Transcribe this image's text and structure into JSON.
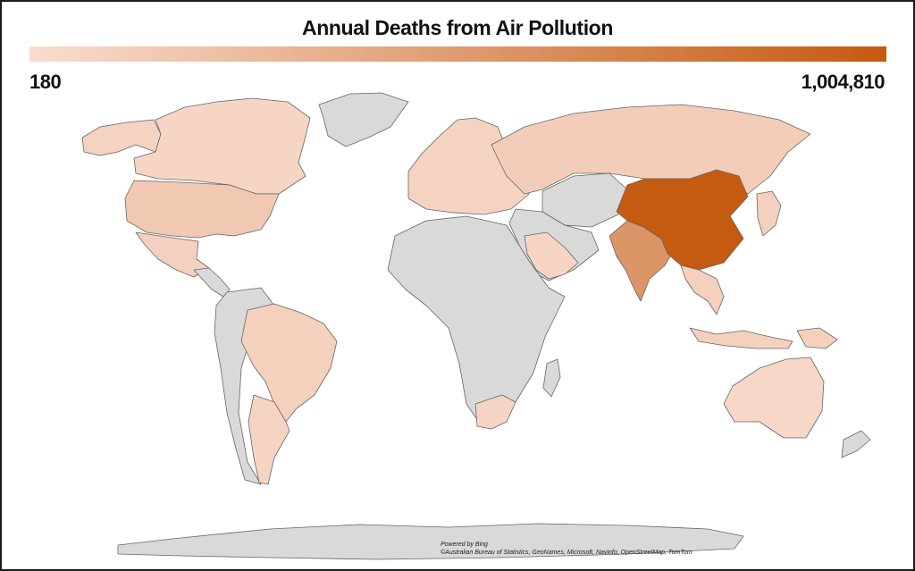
{
  "title": "Annual Deaths from Air Pollution",
  "legend": {
    "min_label": "180",
    "max_label": "1,004,810",
    "min_value": 180,
    "max_value": 1004810,
    "color_low": "#f9ddd0",
    "color_high": "#c55a11"
  },
  "colors": {
    "no_data": "#d9d9d9",
    "border": "#666666"
  },
  "regions": [
    {
      "name": "Canada",
      "intensity": 0.06
    },
    {
      "name": "Alaska (USA)",
      "intensity": 0.08
    },
    {
      "name": "United States",
      "intensity": 0.15
    },
    {
      "name": "Mexico",
      "intensity": 0.09
    },
    {
      "name": "Greenland",
      "intensity": null
    },
    {
      "name": "Brazil",
      "intensity": 0.1
    },
    {
      "name": "Argentina",
      "intensity": 0.07
    },
    {
      "name": "Other South America",
      "intensity": null
    },
    {
      "name": "Europe",
      "intensity": 0.08
    },
    {
      "name": "Russia",
      "intensity": 0.12
    },
    {
      "name": "Central Asia",
      "intensity": null
    },
    {
      "name": "Saudi Arabia",
      "intensity": 0.06
    },
    {
      "name": "Middle East",
      "intensity": null
    },
    {
      "name": "Africa",
      "intensity": null
    },
    {
      "name": "South Africa",
      "intensity": 0.07
    },
    {
      "name": "India",
      "intensity": 0.55
    },
    {
      "name": "China",
      "intensity": 1.0
    },
    {
      "name": "Japan",
      "intensity": 0.09
    },
    {
      "name": "Southeast Asia",
      "intensity": 0.1
    },
    {
      "name": "Indonesia",
      "intensity": 0.1
    },
    {
      "name": "Australia",
      "intensity": 0.04
    },
    {
      "name": "New Zealand",
      "intensity": null
    },
    {
      "name": "Antarctica",
      "intensity": null
    }
  ],
  "attribution": {
    "line1": "Powered by Bing",
    "line2": "©Australian Bureau of Statistics, GeoNames, Microsoft, Navinfo, OpenStreetMap, TomTom"
  }
}
